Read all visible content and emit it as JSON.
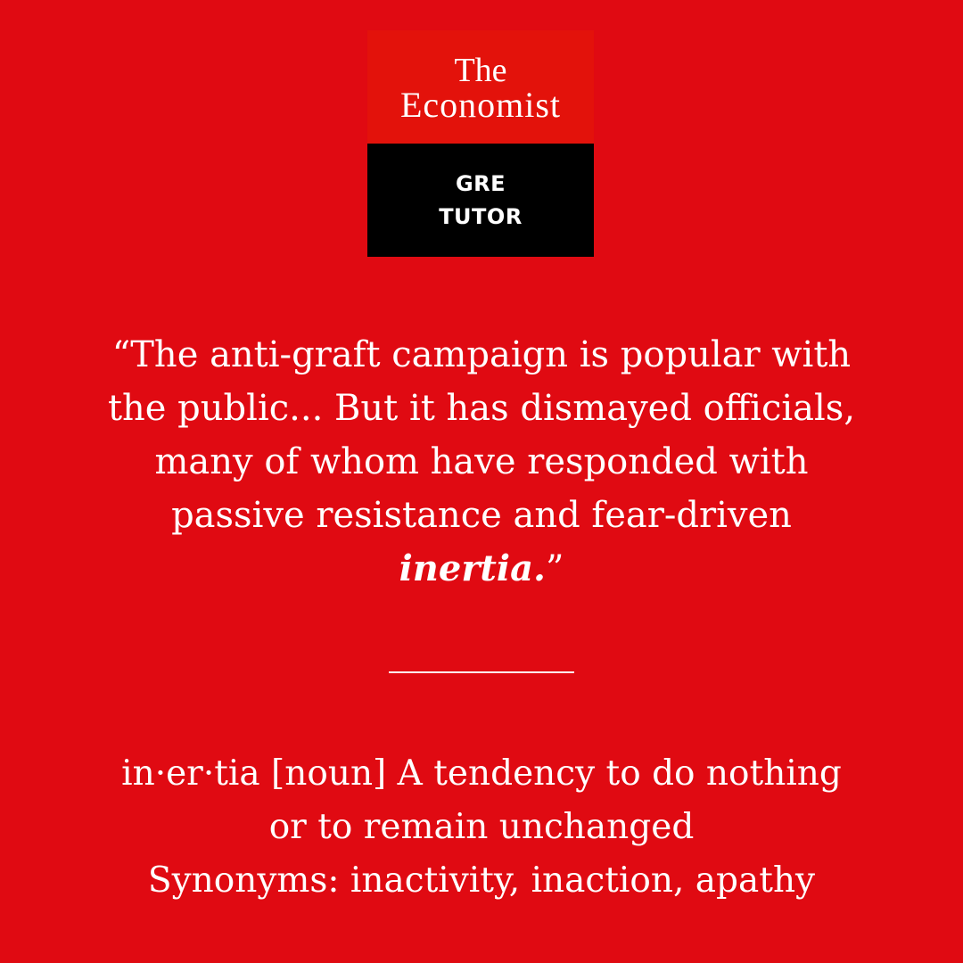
{
  "logo": {
    "brand_line1": "The",
    "brand_line2": "Economist",
    "product_line1": "GRE",
    "product_line2": "TUTOR",
    "colors": {
      "brand_red": "#e3120b",
      "black": "#000000"
    }
  },
  "quote": {
    "before": "“The anti-graft campaign is popular with the public... But it has dismayed officials, many of whom have responded with passive resistance and fear-driven ",
    "highlight": "inertia.",
    "after": "”"
  },
  "definition": {
    "line1": "in·er·tia [noun] A tendency to do nothing",
    "line2": "or to remain unchanged",
    "line3": "Synonyms: inactivity, inaction, apathy"
  },
  "colors": {
    "background": "#e00a12",
    "text": "#ffffff"
  }
}
